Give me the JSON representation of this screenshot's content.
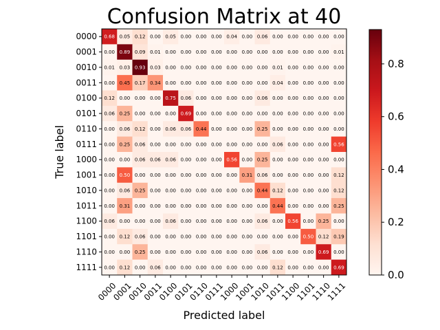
{
  "chart_data": {
    "type": "heatmap",
    "title": "Confusion Matrix at 40",
    "xlabel": "Predicted label",
    "ylabel": "True label",
    "x_categories": [
      "0000",
      "0001",
      "0010",
      "0011",
      "0100",
      "0101",
      "0110",
      "0111",
      "1000",
      "1001",
      "1010",
      "1011",
      "1100",
      "1101",
      "1110",
      "1111"
    ],
    "y_categories": [
      "0000",
      "0001",
      "0010",
      "0011",
      "0100",
      "0101",
      "0110",
      "0111",
      "1000",
      "1001",
      "1010",
      "1011",
      "1100",
      "1101",
      "1110",
      "1111"
    ],
    "values": [
      [
        "0.68",
        "0.05",
        "0.12",
        "0.00",
        "0.05",
        "0.00",
        "0.00",
        "0.00",
        "0.04",
        "0.00",
        "0.06",
        "0.00",
        "0.00",
        "0.00",
        "0.00",
        "0.00"
      ],
      [
        "0.00",
        "0.89",
        "0.09",
        "0.01",
        "0.00",
        "0.00",
        "0.00",
        "0.00",
        "0.00",
        "0.00",
        "0.00",
        "0.00",
        "0.00",
        "0.00",
        "0.00",
        "0.01"
      ],
      [
        "0.01",
        "0.03",
        "0.93",
        "0.03",
        "0.00",
        "0.00",
        "0.00",
        "0.00",
        "0.00",
        "0.00",
        "0.00",
        "0.01",
        "0.00",
        "0.00",
        "0.00",
        "0.00"
      ],
      [
        "0.00",
        "0.45",
        "0.17",
        "0.34",
        "0.00",
        "0.00",
        "0.00",
        "0.00",
        "0.00",
        "0.00",
        "0.00",
        "0.04",
        "0.00",
        "0.00",
        "0.00",
        "0.00"
      ],
      [
        "0.12",
        "0.00",
        "0.00",
        "0.00",
        "0.75",
        "0.06",
        "0.00",
        "0.00",
        "0.00",
        "0.00",
        "0.06",
        "0.00",
        "0.00",
        "0.00",
        "0.00",
        "0.00"
      ],
      [
        "0.06",
        "0.25",
        "0.00",
        "0.00",
        "0.00",
        "0.69",
        "0.00",
        "0.00",
        "0.00",
        "0.00",
        "0.00",
        "0.00",
        "0.00",
        "0.00",
        "0.00",
        "0.00"
      ],
      [
        "0.00",
        "0.06",
        "0.12",
        "0.00",
        "0.06",
        "0.06",
        "0.44",
        "0.00",
        "0.00",
        "0.00",
        "0.25",
        "0.00",
        "0.00",
        "0.00",
        "0.00",
        "0.00"
      ],
      [
        "0.00",
        "0.25",
        "0.06",
        "0.00",
        "0.00",
        "0.00",
        "0.00",
        "0.00",
        "0.00",
        "0.00",
        "0.00",
        "0.06",
        "0.00",
        "0.00",
        "0.00",
        "0.56"
      ],
      [
        "0.00",
        "0.00",
        "0.06",
        "0.06",
        "0.06",
        "0.00",
        "0.00",
        "0.00",
        "0.56",
        "0.00",
        "0.25",
        "0.00",
        "0.00",
        "0.00",
        "0.00",
        "0.00"
      ],
      [
        "0.00",
        "0.50",
        "0.00",
        "0.00",
        "0.00",
        "0.00",
        "0.00",
        "0.00",
        "0.00",
        "0.31",
        "0.06",
        "0.00",
        "0.00",
        "0.00",
        "0.00",
        "0.12"
      ],
      [
        "0.00",
        "0.06",
        "0.25",
        "0.00",
        "0.00",
        "0.00",
        "0.00",
        "0.00",
        "0.00",
        "0.00",
        "0.44",
        "0.12",
        "0.00",
        "0.00",
        "0.00",
        "0.12"
      ],
      [
        "0.00",
        "0.31",
        "0.00",
        "0.00",
        "0.00",
        "0.00",
        "0.00",
        "0.00",
        "0.00",
        "0.00",
        "0.00",
        "0.44",
        "0.00",
        "0.00",
        "0.00",
        "0.25"
      ],
      [
        "0.06",
        "0.00",
        "0.00",
        "0.00",
        "0.06",
        "0.00",
        "0.00",
        "0.00",
        "0.00",
        "0.00",
        "0.06",
        "0.00",
        "0.56",
        "0.00",
        "0.25",
        "0.00"
      ],
      [
        "0.00",
        "0.12",
        "0.06",
        "0.00",
        "0.00",
        "0.00",
        "0.00",
        "0.00",
        "0.00",
        "0.00",
        "0.00",
        "0.00",
        "0.00",
        "0.50",
        "0.12",
        "0.19"
      ],
      [
        "0.00",
        "0.00",
        "0.25",
        "0.00",
        "0.00",
        "0.00",
        "0.00",
        "0.00",
        "0.00",
        "0.00",
        "0.06",
        "0.00",
        "0.00",
        "0.00",
        "0.69",
        "0.00"
      ],
      [
        "0.00",
        "0.12",
        "0.00",
        "0.06",
        "0.00",
        "0.00",
        "0.00",
        "0.00",
        "0.00",
        "0.00",
        "0.00",
        "0.12",
        "0.00",
        "0.00",
        "0.00",
        "0.69"
      ]
    ],
    "colormap": "Reds",
    "colorbar": {
      "range": [
        0.0,
        0.93
      ],
      "ticks": [
        "0.0",
        "0.2",
        "0.4",
        "0.6",
        "0.8"
      ]
    },
    "grid": false,
    "legend": "none"
  }
}
